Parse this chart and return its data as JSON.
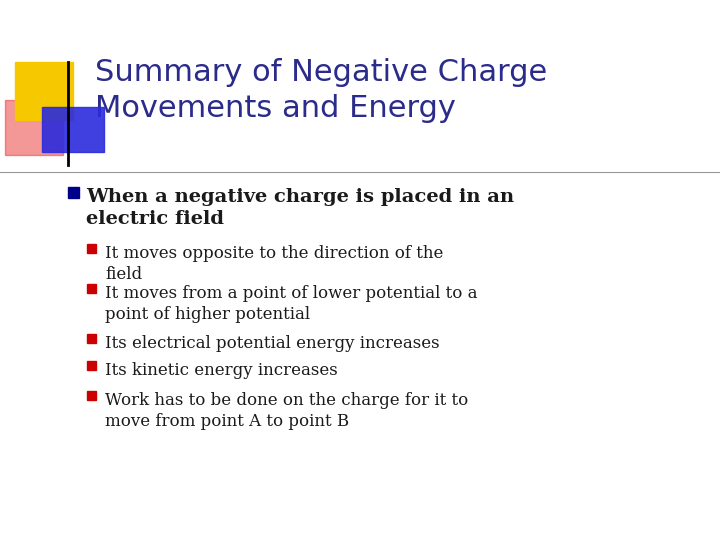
{
  "title_line1": "Summary of Negative Charge",
  "title_line2": "Movements and Energy",
  "title_color": "#2B2B8B",
  "bg_color": "#FFFFFF",
  "bullet1_line1": "When a negative charge is placed in an",
  "bullet1_line2": "electric field",
  "bullet1_color": "#1A1A1A",
  "bullet1_marker_color": "#00008B",
  "sub_bullets": [
    "It moves opposite to the direction of the\nfield",
    "It moves from a point of lower potential to a\npoint of higher potential",
    "Its electrical potential energy increases",
    "Its kinetic energy increases",
    "Work has to be done on the charge for it to\nmove from point A to point B"
  ],
  "sub_bullet_color": "#1A1A1A",
  "sub_bullet_marker_color": "#CC0000",
  "title_font_size": 22,
  "body_font_size": 14,
  "sub_font_size": 12
}
